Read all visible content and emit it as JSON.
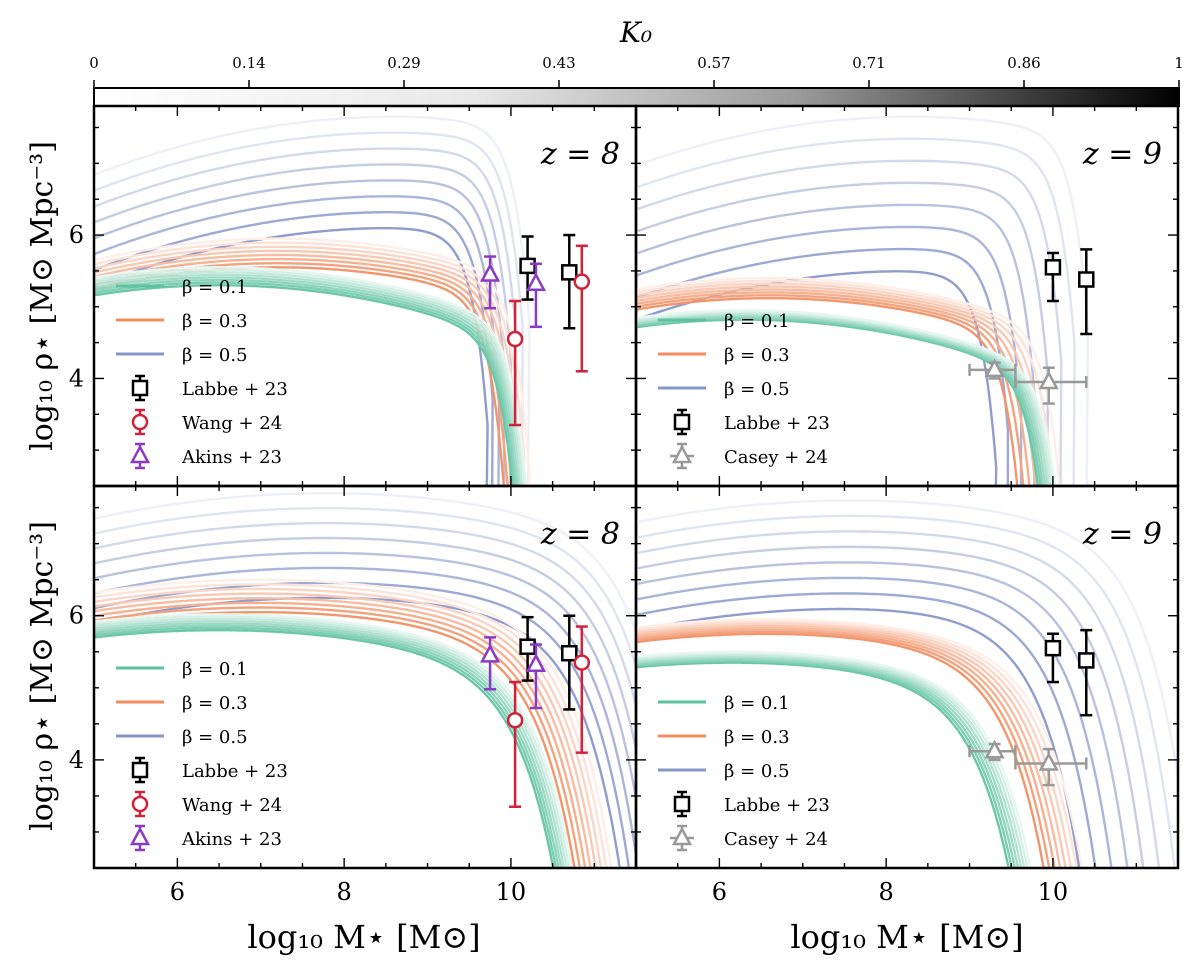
{
  "colorbar": {
    "label": "K₀",
    "ticks": [
      "0",
      "0.14",
      "0.29",
      "0.43",
      "0.57",
      "0.71",
      "0.86",
      "1"
    ]
  },
  "axes": {
    "xlabel": "log₁₀ M⋆ [M⊙]",
    "ylabel": "log₁₀ ρ⋆ [M⊙ Mpc⁻³]",
    "xlim": [
      5,
      11.5
    ],
    "ylim": [
      2.5,
      7.8
    ],
    "xticks": [
      "6",
      "8",
      "10"
    ],
    "yticks": [
      "4",
      "6"
    ]
  },
  "colors": {
    "beta_0.1": "#5ec2a0",
    "beta_0.3": "#f28c5e",
    "beta_0.5": "#8595c9",
    "labbe": "#000000",
    "wang": "#d0223a",
    "akins": "#8a3bc4",
    "casey": "#999999"
  },
  "chart_data": [
    {
      "type": "line",
      "panel": "top-left",
      "title": "z = 8",
      "curve_set": "truncated",
      "series": [
        {
          "name": "β = 0.1",
          "color": "#5ec2a0",
          "peak_range": [
            5.3,
            5.55
          ],
          "x_peak": 6.5,
          "x_cut": [
            10.05,
            10.2
          ]
        },
        {
          "name": "β = 0.3",
          "color": "#f28c5e",
          "peak_range": [
            5.55,
            5.95
          ],
          "x_peak": 7.2,
          "x_cut": [
            9.9,
            10.2
          ]
        },
        {
          "name": "β = 0.5",
          "color": "#8595c9",
          "peak_range": [
            6.1,
            7.65
          ],
          "x_peak": 8.6,
          "x_cut": [
            9.7,
            10.2
          ]
        }
      ],
      "observations": [
        {
          "name": "Labbe + 23",
          "marker": "square",
          "points": [
            {
              "x": 10.2,
              "y": 5.57,
              "ylo": 5.1,
              "yhi": 5.98
            },
            {
              "x": 10.7,
              "y": 5.48,
              "ylo": 4.7,
              "yhi": 6.0
            }
          ]
        },
        {
          "name": "Wang + 24",
          "marker": "circle",
          "points": [
            {
              "x": 10.05,
              "y": 4.55,
              "ylo": 3.35,
              "yhi": 5.08
            },
            {
              "x": 10.85,
              "y": 5.35,
              "ylo": 4.1,
              "yhi": 5.85
            }
          ]
        },
        {
          "name": "Akins + 23",
          "marker": "triangle",
          "points": [
            {
              "x": 9.75,
              "y": 5.45,
              "ylo": 4.98,
              "yhi": 5.7
            },
            {
              "x": 10.3,
              "y": 5.32,
              "ylo": 4.72,
              "yhi": 5.6
            }
          ]
        }
      ],
      "legend": "lower-left"
    },
    {
      "type": "line",
      "panel": "top-right",
      "title": "z = 9",
      "curve_set": "truncated",
      "series": [
        {
          "name": "β = 0.1",
          "color": "#5ec2a0",
          "peak_range": [
            4.82,
            4.95
          ],
          "x_peak": 6.3,
          "x_cut": [
            9.9,
            10.1
          ]
        },
        {
          "name": "β = 0.3",
          "color": "#f28c5e",
          "peak_range": [
            5.12,
            5.4
          ],
          "x_peak": 6.6,
          "x_cut": [
            9.6,
            10.1
          ]
        },
        {
          "name": "β = 0.5",
          "color": "#8595c9",
          "peak_range": [
            5.5,
            7.65
          ],
          "x_peak": 8.3,
          "x_cut": [
            9.3,
            10.4
          ]
        }
      ],
      "observations": [
        {
          "name": "Labbe + 23",
          "marker": "square",
          "points": [
            {
              "x": 10.0,
              "y": 5.55,
              "ylo": 5.08,
              "yhi": 5.75
            },
            {
              "x": 10.4,
              "y": 5.38,
              "ylo": 4.62,
              "yhi": 5.8
            }
          ]
        },
        {
          "name": "Casey + 24",
          "marker": "triangle",
          "points": [
            {
              "x": 9.3,
              "y": 4.12,
              "ylo": 4.0,
              "yhi": 4.22,
              "xlo": 9.0,
              "xhi": 9.55
            },
            {
              "x": 9.95,
              "y": 3.95,
              "ylo": 3.65,
              "yhi": 4.15,
              "xlo": 9.55,
              "xhi": 10.4
            }
          ]
        }
      ],
      "legend": "lower-left"
    },
    {
      "type": "line",
      "panel": "bottom-left",
      "title": "z = 8",
      "curve_set": "full",
      "series": [
        {
          "name": "β = 0.1",
          "color": "#5ec2a0",
          "peak_range": [
            5.8,
            6.02
          ],
          "x_peak": 6.5,
          "x_cut": [
            10.9,
            11.1
          ]
        },
        {
          "name": "β = 0.3",
          "color": "#f28c5e",
          "peak_range": [
            6.05,
            6.5
          ],
          "x_peak": 7.0,
          "x_cut": [
            11.1,
            11.5
          ]
        },
        {
          "name": "β = 0.5",
          "color": "#8595c9",
          "peak_range": [
            6.25,
            7.7
          ],
          "x_peak": 7.8,
          "x_cut": [
            11.6,
            12.2
          ]
        }
      ],
      "observations": [
        {
          "name": "Labbe + 23",
          "marker": "square",
          "points": [
            {
              "x": 10.2,
              "y": 5.57,
              "ylo": 5.1,
              "yhi": 5.98
            },
            {
              "x": 10.7,
              "y": 5.48,
              "ylo": 4.7,
              "yhi": 6.0
            }
          ]
        },
        {
          "name": "Wang + 24",
          "marker": "circle",
          "points": [
            {
              "x": 10.05,
              "y": 4.55,
              "ylo": 3.35,
              "yhi": 5.08
            },
            {
              "x": 10.85,
              "y": 5.35,
              "ylo": 4.1,
              "yhi": 5.85
            }
          ]
        },
        {
          "name": "Akins + 23",
          "marker": "triangle",
          "points": [
            {
              "x": 9.75,
              "y": 5.45,
              "ylo": 4.98,
              "yhi": 5.7
            },
            {
              "x": 10.3,
              "y": 5.32,
              "ylo": 4.72,
              "yhi": 5.6
            }
          ]
        }
      ],
      "legend": "lower-left"
    },
    {
      "type": "line",
      "panel": "bottom-right",
      "title": "z = 9",
      "curve_set": "full",
      "series": [
        {
          "name": "β = 0.1",
          "color": "#5ec2a0",
          "peak_range": [
            5.35,
            5.5
          ],
          "x_peak": 6.2,
          "x_cut": [
            9.9,
            10.15
          ]
        },
        {
          "name": "β = 0.3",
          "color": "#f28c5e",
          "peak_range": [
            5.75,
            5.95
          ],
          "x_peak": 6.6,
          "x_cut": [
            10.25,
            10.7
          ]
        },
        {
          "name": "β = 0.5",
          "color": "#8595c9",
          "peak_range": [
            6.1,
            7.6
          ],
          "x_peak": 7.6,
          "x_cut": [
            10.6,
            11.8
          ]
        }
      ],
      "observations": [
        {
          "name": "Labbe + 23",
          "marker": "square",
          "points": [
            {
              "x": 10.0,
              "y": 5.55,
              "ylo": 5.08,
              "yhi": 5.75
            },
            {
              "x": 10.4,
              "y": 5.38,
              "ylo": 4.62,
              "yhi": 5.8
            }
          ]
        },
        {
          "name": "Casey + 24",
          "marker": "triangle",
          "points": [
            {
              "x": 9.3,
              "y": 4.12,
              "ylo": 4.0,
              "yhi": 4.22,
              "xlo": 9.0,
              "xhi": 9.55
            },
            {
              "x": 9.95,
              "y": 3.95,
              "ylo": 3.65,
              "yhi": 4.15,
              "xlo": 9.55,
              "xhi": 10.4
            }
          ]
        }
      ],
      "legend": "lower-left"
    }
  ]
}
